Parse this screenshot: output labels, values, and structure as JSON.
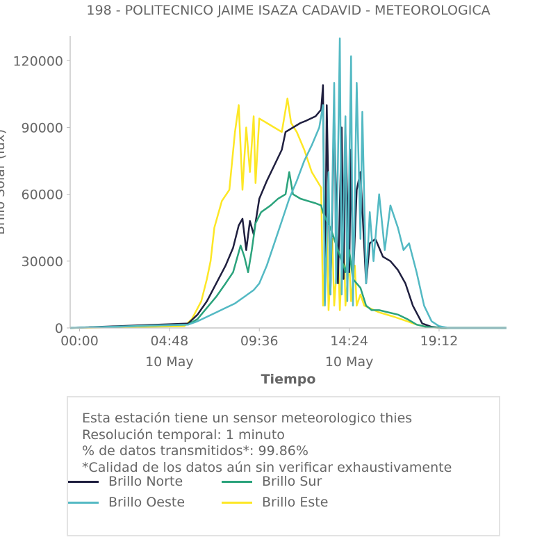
{
  "chart_data": {
    "type": "line",
    "title": "198 - POLITECNICO JAIME ISAZA CADAVID - METEOROLOGICA",
    "xlabel": "Tiempo",
    "ylabel": "Brillo Solar (lux)",
    "xlim": [
      -0.5,
      22.8
    ],
    "ylim": [
      0,
      131000
    ],
    "x_ticks": [
      {
        "x": 0.0,
        "label": "00:00",
        "sublabel": ""
      },
      {
        "x": 4.8,
        "label": "04:48",
        "sublabel": "10 May"
      },
      {
        "x": 9.6,
        "label": "09:36",
        "sublabel": ""
      },
      {
        "x": 14.4,
        "label": "14:24",
        "sublabel": "10 May"
      },
      {
        "x": 19.2,
        "label": "19:12",
        "sublabel": ""
      }
    ],
    "y_ticks": [
      0,
      30000,
      60000,
      90000,
      120000
    ],
    "y_tick_labels": [
      "0",
      "30000",
      "60000",
      "90000",
      "120000"
    ],
    "grid": false,
    "legend_position": "bottom",
    "series": [
      {
        "name": "Brillo Este",
        "color": "#fde725",
        "x": [
          -0.5,
          5.6,
          6.0,
          6.5,
          6.8,
          7.0,
          7.2,
          7.6,
          8.0,
          8.3,
          8.5,
          8.7,
          8.9,
          9.1,
          9.3,
          9.4,
          9.6,
          10.0,
          10.4,
          10.8,
          11.1,
          11.3,
          11.6,
          12.0,
          12.4,
          12.9,
          13.0,
          13.2,
          13.3,
          13.5,
          13.6,
          13.8,
          13.9,
          14.1,
          14.2,
          14.4,
          14.5,
          14.7,
          14.8,
          15.0,
          15.2,
          16.0,
          16.8,
          17.5,
          18.0,
          18.5,
          19.0,
          19.5,
          22.8
        ],
        "y": [
          0,
          800,
          4000,
          12000,
          22000,
          30000,
          45000,
          57000,
          62000,
          88000,
          100000,
          62000,
          90000,
          70000,
          95000,
          65000,
          94000,
          92000,
          90000,
          88000,
          103000,
          92000,
          88000,
          80000,
          70000,
          63000,
          10000,
          50000,
          8000,
          40000,
          10000,
          35000,
          8000,
          45000,
          10000,
          30000,
          12000,
          28000,
          10000,
          15000,
          10000,
          7000,
          5000,
          3000,
          1500,
          500,
          200,
          0,
          0
        ]
      },
      {
        "name": "Brillo Norte",
        "color": "#1f1f3f",
        "x": [
          -0.5,
          5.8,
          6.3,
          6.8,
          7.3,
          7.8,
          8.2,
          8.5,
          8.7,
          8.9,
          9.1,
          9.3,
          9.6,
          10.0,
          10.4,
          10.8,
          11.0,
          11.4,
          11.8,
          12.1,
          12.6,
          12.9,
          13.0,
          13.1,
          13.2,
          13.4,
          13.6,
          13.8,
          14.0,
          14.1,
          14.2,
          14.4,
          14.5,
          14.6,
          14.8,
          15.0,
          15.3,
          15.5,
          15.8,
          16.2,
          16.6,
          17.0,
          17.4,
          17.8,
          18.3,
          18.8,
          19.3,
          22.8
        ],
        "y": [
          0,
          2000,
          6000,
          12000,
          20000,
          28000,
          36000,
          46000,
          49000,
          35000,
          48000,
          42000,
          58000,
          66000,
          73000,
          80000,
          88000,
          90000,
          92000,
          93000,
          95000,
          98000,
          109000,
          12000,
          100000,
          15000,
          96000,
          20000,
          90000,
          22000,
          88000,
          25000,
          80000,
          20000,
          62000,
          70000,
          20000,
          38000,
          40000,
          32000,
          30000,
          26000,
          20000,
          10000,
          2000,
          500,
          0,
          0
        ]
      },
      {
        "name": "Brillo Sur",
        "color": "#2ba37c",
        "x": [
          -0.5,
          5.8,
          6.3,
          6.8,
          7.3,
          7.8,
          8.2,
          8.6,
          8.8,
          9.0,
          9.2,
          9.4,
          9.7,
          10.2,
          10.6,
          11.0,
          11.2,
          11.4,
          11.8,
          12.2,
          12.6,
          12.9,
          13.0,
          13.2,
          13.4,
          13.6,
          13.8,
          14.0,
          14.1,
          14.2,
          14.4,
          14.6,
          14.8,
          15.0,
          15.3,
          15.6,
          16.0,
          16.5,
          17.0,
          17.5,
          18.0,
          18.5,
          19.0,
          19.5,
          22.8
        ],
        "y": [
          0,
          1500,
          4000,
          9000,
          14000,
          20000,
          25000,
          37000,
          32000,
          25000,
          35000,
          47000,
          52000,
          55000,
          58000,
          60000,
          70000,
          60000,
          58000,
          57000,
          56000,
          55000,
          52000,
          48000,
          45000,
          40000,
          35000,
          30000,
          28000,
          25000,
          35000,
          22000,
          20000,
          18000,
          10000,
          8000,
          8000,
          7000,
          6000,
          4000,
          1500,
          500,
          200,
          0,
          0
        ]
      },
      {
        "name": "Brillo Oeste",
        "color": "#53b9c3",
        "x": [
          -0.5,
          5.8,
          6.3,
          6.8,
          7.3,
          7.8,
          8.3,
          8.8,
          9.3,
          9.6,
          10.0,
          10.4,
          10.8,
          11.2,
          11.6,
          12.0,
          12.4,
          12.8,
          13.0,
          13.1,
          13.3,
          13.4,
          13.6,
          13.7,
          13.9,
          14.0,
          14.2,
          14.3,
          14.5,
          14.6,
          14.8,
          15.0,
          15.1,
          15.3,
          15.5,
          15.7,
          16.0,
          16.3,
          16.6,
          17.0,
          17.3,
          17.6,
          18.0,
          18.4,
          18.8,
          19.2,
          19.7,
          22.8
        ],
        "y": [
          0,
          1500,
          3000,
          5000,
          7000,
          9000,
          11000,
          14000,
          17000,
          20000,
          28000,
          38000,
          48000,
          58000,
          66000,
          75000,
          82000,
          90000,
          100000,
          10000,
          70000,
          15000,
          110000,
          20000,
          130000,
          15000,
          95000,
          12000,
          122000,
          10000,
          110000,
          40000,
          97000,
          20000,
          52000,
          30000,
          60000,
          35000,
          55000,
          45000,
          35000,
          38000,
          25000,
          10000,
          3000,
          800,
          0,
          0
        ]
      }
    ]
  },
  "legend": {
    "items": [
      {
        "name": "Brillo Norte",
        "color": "#1f1f3f"
      },
      {
        "name": "Brillo Sur",
        "color": "#2ba37c"
      },
      {
        "name": "Brillo Oeste",
        "color": "#53b9c3"
      },
      {
        "name": "Brillo Este",
        "color": "#fde725"
      }
    ]
  },
  "info": {
    "line1": "Esta estación tiene un sensor meteorologico thies",
    "line2": "Resolución temporal: 1 minuto",
    "line3": "% de datos transmitidos*: 99.86%",
    "line4": "*Calidad de los datos aún sin verificar exhaustivamente"
  }
}
